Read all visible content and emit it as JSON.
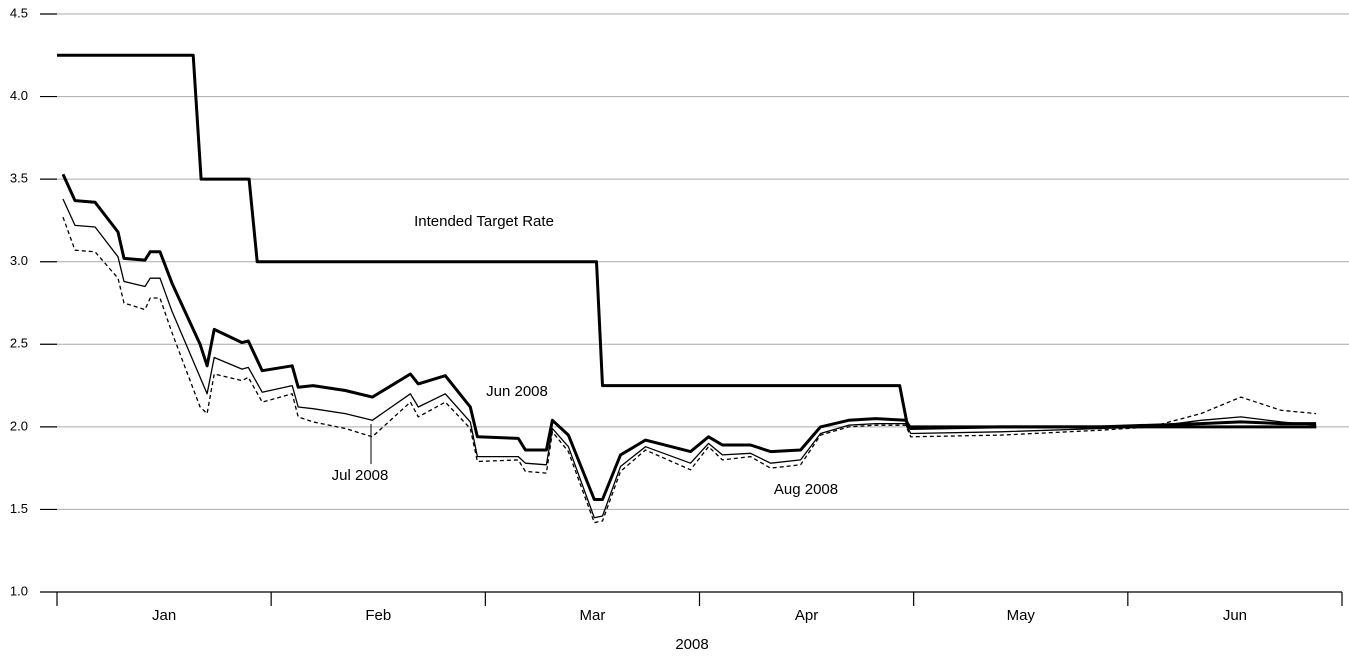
{
  "chart_data": {
    "type": "line",
    "x_label": "2008",
    "categories": [
      "Jan",
      "Feb",
      "Mar",
      "Apr",
      "May",
      "Jun"
    ],
    "xlim": [
      0,
      6
    ],
    "ylim": [
      1.0,
      4.5
    ],
    "yticks": [
      {
        "value": 1.0,
        "label": "1.0"
      },
      1.5,
      {
        "value": 2.0,
        "label": "2.0"
      },
      2.5,
      {
        "value": 3.0,
        "label": "3.0"
      },
      3.5,
      {
        "value": 4.0,
        "label": "4.0"
      },
      4.5
    ],
    "grid": true,
    "series": [
      {
        "name": "Intended Target Rate",
        "color": "#000000",
        "style": "thick",
        "x": [
          0,
          0.636,
          0.673,
          0.897,
          0.935,
          2.519,
          2.547,
          3.935,
          3.972,
          5.88
        ],
        "values": [
          4.25,
          4.25,
          3.5,
          3.5,
          3.0,
          3.0,
          2.25,
          2.25,
          2.0,
          2.0
        ]
      },
      {
        "name": "Jun 2008",
        "color": "#000000",
        "style": "thick",
        "x": [
          0.028,
          0.084,
          0.178,
          0.285,
          0.313,
          0.411,
          0.435,
          0.481,
          0.537,
          0.668,
          0.701,
          0.734,
          0.864,
          0.893,
          0.958,
          1.098,
          1.126,
          1.196,
          1.346,
          1.472,
          1.65,
          1.687,
          1.813,
          1.93,
          1.963,
          2.154,
          2.187,
          2.285,
          2.313,
          2.388,
          2.509,
          2.547,
          2.631,
          2.748,
          2.958,
          3.042,
          3.107,
          3.238,
          3.332,
          3.472,
          3.565,
          3.696,
          3.822,
          3.963,
          3.986,
          4.407,
          4.874,
          5.107,
          5.341,
          5.528,
          5.715,
          5.879
        ],
        "values": [
          3.53,
          3.37,
          3.36,
          3.18,
          3.02,
          3.01,
          3.06,
          3.06,
          2.87,
          2.5,
          2.37,
          2.59,
          2.51,
          2.52,
          2.34,
          2.37,
          2.24,
          2.25,
          2.22,
          2.18,
          2.32,
          2.26,
          2.31,
          2.12,
          1.94,
          1.93,
          1.86,
          1.86,
          2.04,
          1.95,
          1.56,
          1.56,
          1.83,
          1.92,
          1.85,
          1.94,
          1.89,
          1.89,
          1.85,
          1.86,
          2.0,
          2.04,
          2.05,
          2.04,
          1.99,
          2.0,
          2.0,
          2.01,
          2.02,
          2.03,
          2.02,
          2.02
        ]
      },
      {
        "name": "Jul 2008",
        "color": "#000000",
        "style": "thin",
        "x": [
          0.028,
          0.084,
          0.178,
          0.285,
          0.313,
          0.411,
          0.435,
          0.481,
          0.537,
          0.668,
          0.701,
          0.734,
          0.864,
          0.893,
          0.958,
          1.098,
          1.126,
          1.196,
          1.346,
          1.472,
          1.65,
          1.687,
          1.813,
          1.93,
          1.963,
          2.154,
          2.187,
          2.285,
          2.313,
          2.388,
          2.509,
          2.547,
          2.631,
          2.748,
          2.958,
          3.042,
          3.107,
          3.238,
          3.332,
          3.472,
          3.565,
          3.696,
          3.822,
          3.963,
          3.986,
          4.407,
          4.874,
          5.107,
          5.341,
          5.528,
          5.715,
          5.879
        ],
        "values": [
          3.38,
          3.22,
          3.21,
          3.03,
          2.88,
          2.85,
          2.9,
          2.9,
          2.7,
          2.3,
          2.2,
          2.42,
          2.35,
          2.36,
          2.21,
          2.25,
          2.12,
          2.11,
          2.08,
          2.04,
          2.2,
          2.12,
          2.2,
          2.03,
          1.82,
          1.82,
          1.78,
          1.77,
          1.99,
          1.88,
          1.45,
          1.46,
          1.76,
          1.88,
          1.78,
          1.9,
          1.83,
          1.84,
          1.78,
          1.8,
          1.96,
          2.01,
          2.02,
          2.02,
          1.96,
          1.97,
          1.99,
          2.0,
          2.04,
          2.06,
          2.03,
          2.01
        ]
      },
      {
        "name": "Aug 2008",
        "color": "#000000",
        "style": "dashed",
        "x": [
          0.028,
          0.084,
          0.178,
          0.285,
          0.313,
          0.411,
          0.435,
          0.481,
          0.537,
          0.668,
          0.701,
          0.734,
          0.864,
          0.893,
          0.958,
          1.098,
          1.126,
          1.196,
          1.346,
          1.472,
          1.65,
          1.687,
          1.813,
          1.93,
          1.963,
          2.154,
          2.187,
          2.285,
          2.313,
          2.388,
          2.509,
          2.547,
          2.631,
          2.748,
          2.958,
          3.042,
          3.107,
          3.238,
          3.332,
          3.472,
          3.565,
          3.696,
          3.822,
          3.963,
          3.986,
          4.407,
          4.874,
          5.107,
          5.341,
          5.528,
          5.715,
          5.879
        ],
        "values": [
          3.27,
          3.07,
          3.06,
          2.9,
          2.75,
          2.71,
          2.78,
          2.78,
          2.57,
          2.12,
          2.08,
          2.32,
          2.28,
          2.3,
          2.15,
          2.2,
          2.06,
          2.03,
          1.99,
          1.94,
          2.15,
          2.06,
          2.15,
          1.99,
          1.79,
          1.8,
          1.73,
          1.72,
          1.97,
          1.85,
          1.42,
          1.43,
          1.73,
          1.86,
          1.74,
          1.88,
          1.8,
          1.82,
          1.75,
          1.77,
          1.95,
          2.0,
          2.01,
          2.01,
          1.94,
          1.95,
          1.98,
          2.0,
          2.08,
          2.18,
          2.1,
          2.08
        ]
      }
    ]
  }
}
